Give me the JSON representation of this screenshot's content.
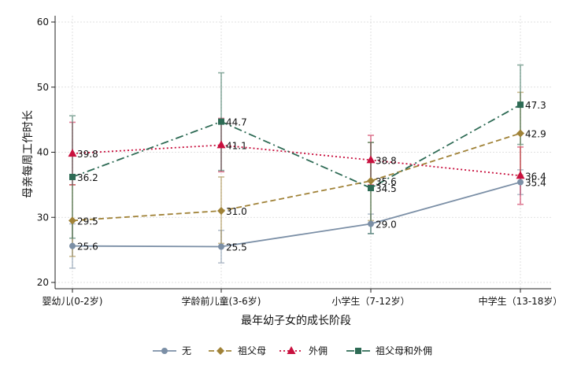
{
  "chart_data": {
    "type": "line",
    "title": "",
    "xlabel": "最年幼子女的成长阶段",
    "ylabel": "母亲每周工作时长",
    "ylim": [
      20,
      60
    ],
    "yticks": [
      20,
      30,
      40,
      50,
      60
    ],
    "grid": true,
    "legend_position": "bottom",
    "categories": [
      "婴幼儿(0-2岁)",
      "学龄前儿童(3-6岁)",
      "小学生（7-12岁）",
      "中学生（13-18岁）"
    ],
    "series": [
      {
        "name": "无",
        "color": "#7b8fa6",
        "marker": "circle",
        "dash": "solid",
        "values": [
          25.6,
          25.5,
          29.0,
          35.4
        ],
        "labels": [
          "25.6",
          "25.5",
          "29.0",
          "35.4"
        ],
        "ci_low": [
          22.2,
          23.0,
          27.5,
          33.5
        ],
        "ci_high": [
          29.0,
          28.0,
          30.5,
          37.3
        ]
      },
      {
        "name": "祖父母",
        "color": "#a08237",
        "marker": "diamond",
        "dash": "dashed",
        "values": [
          29.5,
          31.0,
          35.6,
          42.9
        ],
        "labels": [
          "29.5",
          "31.0",
          "35.6",
          "42.9"
        ],
        "ci_low": [
          24.0,
          26.0,
          29.5,
          36.5
        ],
        "ci_high": [
          35.0,
          36.2,
          41.5,
          49.2
        ]
      },
      {
        "name": "外佣",
        "color": "#c8103e",
        "marker": "triangle",
        "dash": "dotted",
        "values": [
          39.8,
          41.1,
          38.8,
          36.4
        ],
        "labels": [
          "39.8",
          "41.1",
          "38.8",
          "36.4"
        ],
        "ci_low": [
          35.0,
          37.0,
          35.0,
          32.0
        ],
        "ci_high": [
          44.6,
          45.2,
          42.6,
          40.8
        ]
      },
      {
        "name": "祖父母和外佣",
        "color": "#2e6b55",
        "marker": "square",
        "dash": "dashdot",
        "values": [
          36.2,
          44.7,
          34.5,
          47.3
        ],
        "labels": [
          "36.2",
          "44.7",
          "34.5",
          "47.3"
        ],
        "ci_low": [
          26.8,
          37.2,
          27.5,
          41.2
        ],
        "ci_high": [
          45.6,
          52.2,
          41.5,
          53.4
        ]
      }
    ]
  }
}
